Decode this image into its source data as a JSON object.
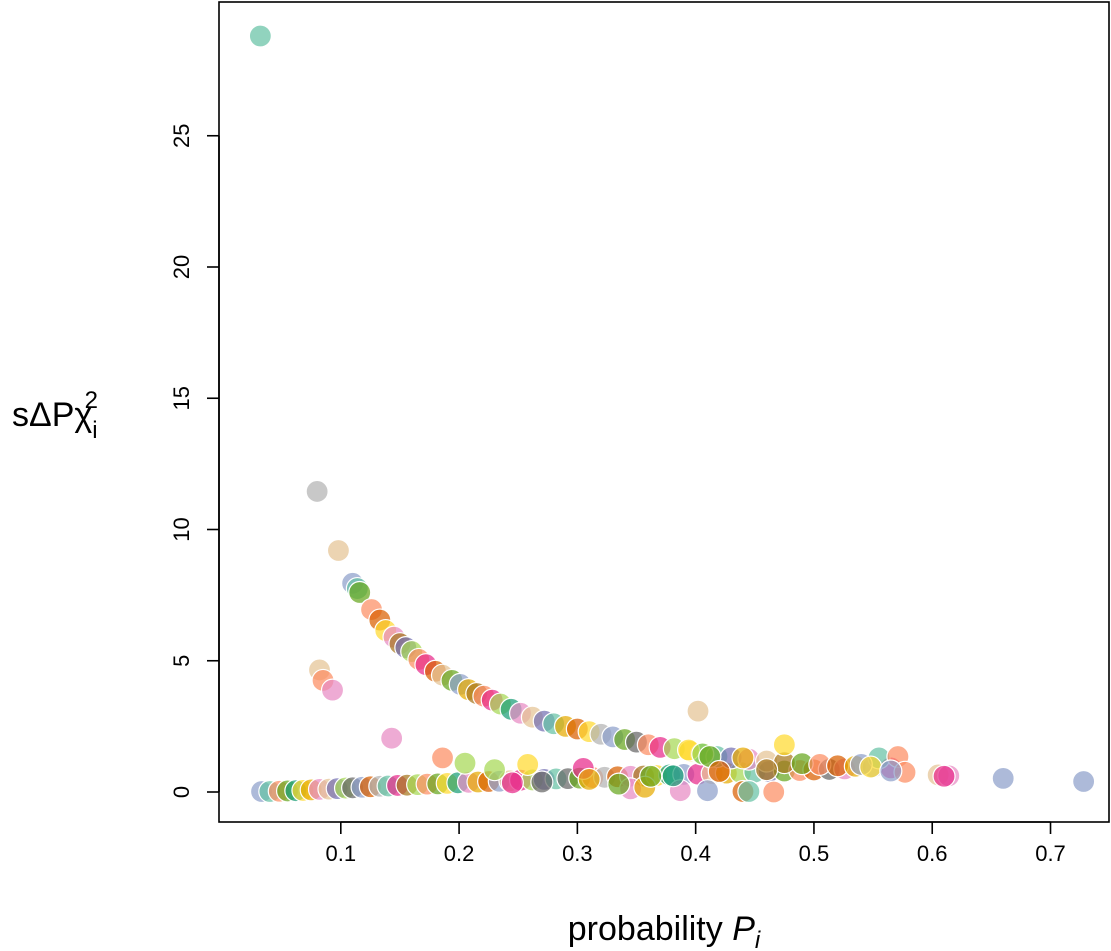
{
  "chart_data": {
    "type": "scatter",
    "xlabel": {
      "base": "probability ",
      "var": "P",
      "sub": "i"
    },
    "ylabel": {
      "prefix": "sΔP",
      "greek": "χ",
      "sub": "i",
      "sup": "2"
    },
    "xlim": [
      0.03,
      0.73
    ],
    "ylim": [
      0,
      28.8
    ],
    "x_ticks": [
      0.1,
      0.2,
      0.3,
      0.4,
      0.5,
      0.6,
      0.7
    ],
    "x_tick_labels": [
      "0.1",
      "0.2",
      "0.3",
      "0.4",
      "0.5",
      "0.6",
      "0.7"
    ],
    "y_ticks": [
      0,
      5,
      10,
      15,
      20,
      25
    ],
    "y_tick_labels": [
      "0",
      "5",
      "10",
      "15",
      "20",
      "25"
    ],
    "grid": false,
    "palette": [
      "#66c2a5",
      "#fc8d62",
      "#8da0cb",
      "#e78ac3",
      "#a6d854",
      "#ffd92f",
      "#e5c494",
      "#b3b3b3",
      "#1b9e77",
      "#d95f02",
      "#7570b3",
      "#e7298a",
      "#66a61e",
      "#e6ab02",
      "#a6761d",
      "#666666"
    ],
    "upper_branch": [
      [
        0.08,
        11.45,
        7
      ],
      [
        0.098,
        9.2,
        6
      ],
      [
        0.11,
        7.95,
        2
      ],
      [
        0.114,
        7.75,
        0
      ],
      [
        0.116,
        7.6,
        12
      ],
      [
        0.126,
        6.95,
        1
      ],
      [
        0.133,
        6.55,
        9
      ],
      [
        0.138,
        6.15,
        5
      ],
      [
        0.145,
        5.9,
        3
      ],
      [
        0.15,
        5.65,
        14
      ],
      [
        0.155,
        5.5,
        10
      ],
      [
        0.16,
        5.35,
        4
      ],
      [
        0.166,
        5.05,
        1
      ],
      [
        0.172,
        4.85,
        11
      ],
      [
        0.18,
        4.6,
        9
      ],
      [
        0.186,
        4.45,
        6
      ],
      [
        0.194,
        4.25,
        12
      ],
      [
        0.201,
        4.1,
        2
      ],
      [
        0.208,
        3.9,
        13
      ],
      [
        0.215,
        3.75,
        14
      ],
      [
        0.221,
        3.65,
        1
      ],
      [
        0.228,
        3.5,
        11
      ],
      [
        0.235,
        3.35,
        4
      ],
      [
        0.244,
        3.15,
        8
      ],
      [
        0.252,
        3.0,
        3
      ],
      [
        0.262,
        2.85,
        6
      ],
      [
        0.272,
        2.7,
        10
      ],
      [
        0.28,
        2.6,
        0
      ],
      [
        0.29,
        2.5,
        13
      ],
      [
        0.3,
        2.4,
        9
      ],
      [
        0.31,
        2.3,
        5
      ],
      [
        0.32,
        2.2,
        7
      ],
      [
        0.33,
        2.1,
        2
      ],
      [
        0.34,
        2.0,
        12
      ],
      [
        0.35,
        1.9,
        15
      ],
      [
        0.36,
        1.8,
        1
      ],
      [
        0.37,
        1.7,
        11
      ],
      [
        0.382,
        1.65,
        4
      ],
      [
        0.395,
        1.55,
        5
      ],
      [
        0.405,
        1.45,
        8
      ],
      [
        0.418,
        1.35,
        0
      ],
      [
        0.43,
        1.3,
        10
      ],
      [
        0.445,
        1.25,
        3
      ],
      [
        0.46,
        1.18,
        6
      ],
      [
        0.475,
        1.12,
        14
      ],
      [
        0.49,
        1.08,
        12
      ],
      [
        0.505,
        1.05,
        1
      ],
      [
        0.52,
        1.0,
        9
      ],
      [
        0.535,
        0.98,
        13
      ],
      [
        0.55,
        0.95,
        2
      ],
      [
        0.565,
        0.92,
        11
      ]
    ],
    "lower_branch": [
      [
        0.033,
        0.02,
        2
      ],
      [
        0.04,
        0.02,
        0
      ],
      [
        0.048,
        0.03,
        1
      ],
      [
        0.055,
        0.04,
        12
      ],
      [
        0.062,
        0.05,
        8
      ],
      [
        0.068,
        0.06,
        5
      ],
      [
        0.075,
        0.08,
        13
      ],
      [
        0.082,
        0.1,
        3
      ],
      [
        0.09,
        0.11,
        6
      ],
      [
        0.097,
        0.13,
        10
      ],
      [
        0.104,
        0.15,
        4
      ],
      [
        0.11,
        0.16,
        15
      ],
      [
        0.118,
        0.18,
        2
      ],
      [
        0.125,
        0.2,
        9
      ],
      [
        0.133,
        0.22,
        7
      ],
      [
        0.14,
        0.23,
        0
      ],
      [
        0.148,
        0.25,
        11
      ],
      [
        0.156,
        0.26,
        14
      ],
      [
        0.165,
        0.28,
        4
      ],
      [
        0.173,
        0.3,
        1
      ],
      [
        0.182,
        0.31,
        12
      ],
      [
        0.19,
        0.33,
        5
      ],
      [
        0.199,
        0.35,
        8
      ],
      [
        0.208,
        0.37,
        3
      ],
      [
        0.216,
        0.38,
        13
      ],
      [
        0.225,
        0.4,
        9
      ],
      [
        0.234,
        0.41,
        2
      ],
      [
        0.243,
        0.43,
        6
      ],
      [
        0.252,
        0.45,
        11
      ],
      [
        0.262,
        0.46,
        4
      ],
      [
        0.272,
        0.48,
        10
      ],
      [
        0.282,
        0.5,
        0
      ],
      [
        0.292,
        0.51,
        15
      ],
      [
        0.302,
        0.53,
        12
      ],
      [
        0.313,
        0.55,
        1
      ],
      [
        0.323,
        0.56,
        7
      ],
      [
        0.334,
        0.58,
        9
      ],
      [
        0.345,
        0.6,
        3
      ],
      [
        0.356,
        0.61,
        14
      ],
      [
        0.367,
        0.63,
        5
      ],
      [
        0.378,
        0.65,
        8
      ],
      [
        0.39,
        0.67,
        2
      ],
      [
        0.402,
        0.68,
        11
      ],
      [
        0.414,
        0.7,
        6
      ],
      [
        0.426,
        0.72,
        13
      ],
      [
        0.438,
        0.74,
        4
      ],
      [
        0.45,
        0.76,
        0
      ],
      [
        0.462,
        0.78,
        10
      ],
      [
        0.475,
        0.8,
        12
      ],
      [
        0.488,
        0.82,
        1
      ],
      [
        0.5,
        0.84,
        9
      ],
      [
        0.513,
        0.86,
        15
      ],
      [
        0.526,
        0.88,
        3
      ]
    ],
    "scattered_points": [
      [
        0.032,
        28.8,
        0
      ],
      [
        0.082,
        4.65,
        6
      ],
      [
        0.085,
        4.25,
        1
      ],
      [
        0.093,
        3.88,
        3
      ],
      [
        0.143,
        2.05,
        3
      ],
      [
        0.186,
        1.3,
        1
      ],
      [
        0.205,
        1.1,
        4
      ],
      [
        0.23,
        0.85,
        4
      ],
      [
        0.258,
        1.05,
        5
      ],
      [
        0.305,
        0.9,
        11
      ],
      [
        0.402,
        3.08,
        6
      ],
      [
        0.394,
        1.6,
        5
      ],
      [
        0.406,
        1.45,
        4
      ],
      [
        0.412,
        1.35,
        12
      ],
      [
        0.44,
        1.3,
        13
      ],
      [
        0.475,
        1.8,
        5
      ],
      [
        0.555,
        1.3,
        0
      ],
      [
        0.571,
        1.35,
        1
      ],
      [
        0.577,
        0.75,
        1
      ],
      [
        0.605,
        0.65,
        6
      ],
      [
        0.614,
        0.62,
        3
      ],
      [
        0.61,
        0.6,
        11
      ],
      [
        0.66,
        0.52,
        2
      ],
      [
        0.728,
        0.4,
        2
      ],
      [
        0.387,
        0.05,
        3
      ],
      [
        0.41,
        0.05,
        2
      ],
      [
        0.44,
        0.02,
        9
      ],
      [
        0.445,
        0.02,
        0
      ],
      [
        0.466,
        0.0,
        1
      ],
      [
        0.345,
        0.12,
        3
      ],
      [
        0.357,
        0.18,
        13
      ],
      [
        0.335,
        0.3,
        12
      ],
      [
        0.245,
        0.35,
        11
      ],
      [
        0.27,
        0.38,
        15
      ],
      [
        0.31,
        0.48,
        13
      ],
      [
        0.362,
        0.6,
        12
      ],
      [
        0.381,
        0.62,
        8
      ],
      [
        0.42,
        0.78,
        9
      ],
      [
        0.46,
        0.85,
        14
      ],
      [
        0.54,
        1.05,
        2
      ],
      [
        0.548,
        0.95,
        5
      ],
      [
        0.565,
        0.8,
        2
      ]
    ]
  }
}
